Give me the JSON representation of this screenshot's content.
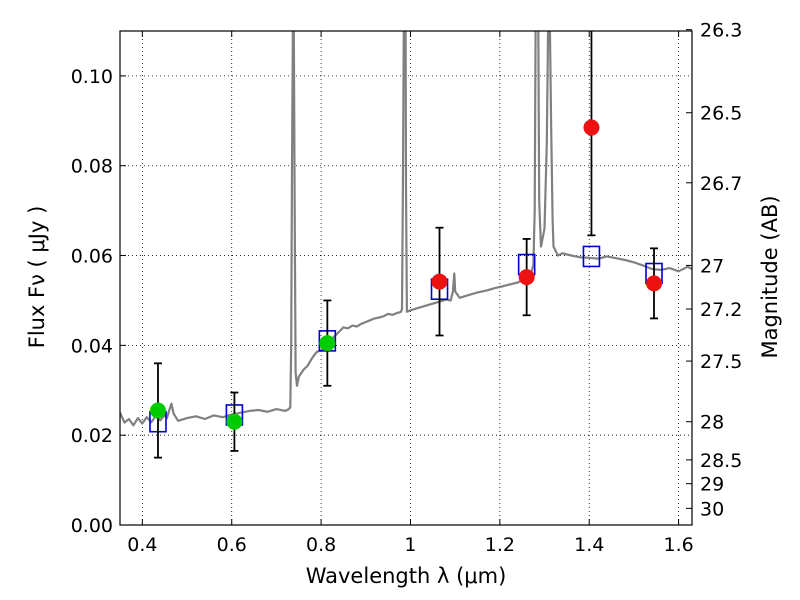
{
  "chart_data": {
    "type": "scatter",
    "title": "",
    "xlabel": "Wavelength  λ (μm)",
    "ylabel": "Flux  Fν  ( μJy )",
    "y2label": "Magnitude (AB)",
    "xlim": [
      0.35,
      1.63
    ],
    "ylim": [
      0.0,
      0.11
    ],
    "grid": true,
    "grid_style": "dotted",
    "x_ticks": [
      {
        "value": 0.4,
        "label": "0.4"
      },
      {
        "value": 0.6,
        "label": "0.6"
      },
      {
        "value": 0.8,
        "label": "0.8"
      },
      {
        "value": 1.0,
        "label": "1"
      },
      {
        "value": 1.2,
        "label": "1.2"
      },
      {
        "value": 1.4,
        "label": "1.4"
      },
      {
        "value": 1.6,
        "label": "1.6"
      }
    ],
    "y_ticks": [
      {
        "value": 0.0,
        "label": "0.00"
      },
      {
        "value": 0.02,
        "label": "0.02"
      },
      {
        "value": 0.04,
        "label": "0.04"
      },
      {
        "value": 0.06,
        "label": "0.06"
      },
      {
        "value": 0.08,
        "label": "0.08"
      },
      {
        "value": 0.1,
        "label": "0.10"
      }
    ],
    "y2_ticks": [
      {
        "label": "26.3",
        "flux": 0.1103
      },
      {
        "label": "26.5",
        "flux": 0.0918
      },
      {
        "label": "26.7",
        "flux": 0.0762
      },
      {
        "label": "27",
        "flux": 0.0578
      },
      {
        "label": "27.2",
        "flux": 0.0481
      },
      {
        "label": "27.5",
        "flux": 0.0365
      },
      {
        "label": "28",
        "flux": 0.023
      },
      {
        "label": "28.5",
        "flux": 0.0145
      },
      {
        "label": "29",
        "flux": 0.0092
      },
      {
        "label": "30",
        "flux": 0.0037
      }
    ],
    "series": [
      {
        "kind": "spectrum",
        "color": "#808080",
        "points": [
          [
            0.35,
            0.025
          ],
          [
            0.36,
            0.0228
          ],
          [
            0.37,
            0.0236
          ],
          [
            0.38,
            0.0222
          ],
          [
            0.39,
            0.0238
          ],
          [
            0.4,
            0.0226
          ],
          [
            0.41,
            0.024
          ],
          [
            0.42,
            0.0229
          ],
          [
            0.43,
            0.0243
          ],
          [
            0.44,
            0.0233
          ],
          [
            0.45,
            0.0245
          ],
          [
            0.455,
            0.0238
          ],
          [
            0.46,
            0.0255
          ],
          [
            0.465,
            0.027
          ],
          [
            0.47,
            0.0248
          ],
          [
            0.48,
            0.0232
          ],
          [
            0.5,
            0.0238
          ],
          [
            0.52,
            0.0242
          ],
          [
            0.54,
            0.0236
          ],
          [
            0.56,
            0.0244
          ],
          [
            0.58,
            0.024
          ],
          [
            0.6,
            0.0246
          ],
          [
            0.62,
            0.025
          ],
          [
            0.64,
            0.0254
          ],
          [
            0.66,
            0.0256
          ],
          [
            0.68,
            0.0252
          ],
          [
            0.7,
            0.0258
          ],
          [
            0.72,
            0.0254
          ],
          [
            0.728,
            0.0258
          ],
          [
            0.731,
            0.0262
          ],
          [
            0.733,
            0.04
          ],
          [
            0.735,
            0.08
          ],
          [
            0.737,
            0.111
          ],
          [
            0.739,
            0.111
          ],
          [
            0.741,
            0.07
          ],
          [
            0.743,
            0.034
          ],
          [
            0.746,
            0.031
          ],
          [
            0.75,
            0.033
          ],
          [
            0.76,
            0.0345
          ],
          [
            0.77,
            0.0355
          ],
          [
            0.78,
            0.0372
          ],
          [
            0.79,
            0.0385
          ],
          [
            0.8,
            0.039
          ],
          [
            0.81,
            0.04
          ],
          [
            0.82,
            0.041
          ],
          [
            0.83,
            0.042
          ],
          [
            0.84,
            0.043
          ],
          [
            0.85,
            0.044
          ],
          [
            0.86,
            0.0438
          ],
          [
            0.87,
            0.0444
          ],
          [
            0.88,
            0.0442
          ],
          [
            0.89,
            0.0448
          ],
          [
            0.9,
            0.0452
          ],
          [
            0.91,
            0.0456
          ],
          [
            0.92,
            0.046
          ],
          [
            0.93,
            0.0462
          ],
          [
            0.94,
            0.0465
          ],
          [
            0.95,
            0.047
          ],
          [
            0.96,
            0.0468
          ],
          [
            0.97,
            0.0472
          ],
          [
            0.978,
            0.0474
          ],
          [
            0.981,
            0.048
          ],
          [
            0.983,
            0.075
          ],
          [
            0.985,
            0.111
          ],
          [
            0.989,
            0.111
          ],
          [
            0.99,
            0.075
          ],
          [
            0.992,
            0.0475
          ],
          [
            1.0,
            0.0478
          ],
          [
            1.02,
            0.0484
          ],
          [
            1.04,
            0.049
          ],
          [
            1.06,
            0.0496
          ],
          [
            1.08,
            0.0502
          ],
          [
            1.09,
            0.05
          ],
          [
            1.095,
            0.052
          ],
          [
            1.098,
            0.056
          ],
          [
            1.1,
            0.052
          ],
          [
            1.11,
            0.0506
          ],
          [
            1.13,
            0.0512
          ],
          [
            1.15,
            0.0518
          ],
          [
            1.17,
            0.0522
          ],
          [
            1.19,
            0.0528
          ],
          [
            1.2,
            0.053
          ],
          [
            1.22,
            0.0535
          ],
          [
            1.24,
            0.054
          ],
          [
            1.25,
            0.0545
          ],
          [
            1.26,
            0.0552
          ],
          [
            1.27,
            0.056
          ],
          [
            1.275,
            0.058
          ],
          [
            1.278,
            0.07
          ],
          [
            1.28,
            0.111
          ],
          [
            1.286,
            0.111
          ],
          [
            1.288,
            0.072
          ],
          [
            1.292,
            0.062
          ],
          [
            1.3,
            0.066
          ],
          [
            1.305,
            0.085
          ],
          [
            1.308,
            0.111
          ],
          [
            1.312,
            0.111
          ],
          [
            1.315,
            0.088
          ],
          [
            1.318,
            0.068
          ],
          [
            1.32,
            0.062
          ],
          [
            1.33,
            0.06
          ],
          [
            1.34,
            0.0605
          ],
          [
            1.36,
            0.06
          ],
          [
            1.38,
            0.0596
          ],
          [
            1.4,
            0.0595
          ],
          [
            1.42,
            0.0593
          ],
          [
            1.44,
            0.0598
          ],
          [
            1.46,
            0.0594
          ],
          [
            1.48,
            0.059
          ],
          [
            1.5,
            0.0585
          ],
          [
            1.52,
            0.0578
          ],
          [
            1.54,
            0.057
          ],
          [
            1.56,
            0.0568
          ],
          [
            1.58,
            0.0572
          ],
          [
            1.6,
            0.0565
          ],
          [
            1.62,
            0.0575
          ],
          [
            1.63,
            0.057
          ]
        ]
      },
      {
        "kind": "model_points",
        "marker": "open_square",
        "color": "#0000cc",
        "x": [
          0.435,
          0.606,
          0.814,
          1.065,
          1.26,
          1.405,
          1.545
        ],
        "y": [
          0.023,
          0.0245,
          0.041,
          0.0525,
          0.058,
          0.0598,
          0.056
        ]
      },
      {
        "kind": "observed",
        "color": "#00cc00",
        "x": [
          0.435,
          0.606,
          0.814
        ],
        "y": [
          0.0255,
          0.023,
          0.0405
        ],
        "err": [
          0.0105,
          0.0065,
          0.0095
        ]
      },
      {
        "kind": "observed",
        "color": "#ee1111",
        "x": [
          1.065,
          1.26,
          1.405,
          1.545
        ],
        "y": [
          0.0542,
          0.0552,
          0.0885,
          0.0538
        ],
        "err": [
          0.012,
          0.0085,
          0.024,
          0.0078
        ]
      }
    ]
  }
}
